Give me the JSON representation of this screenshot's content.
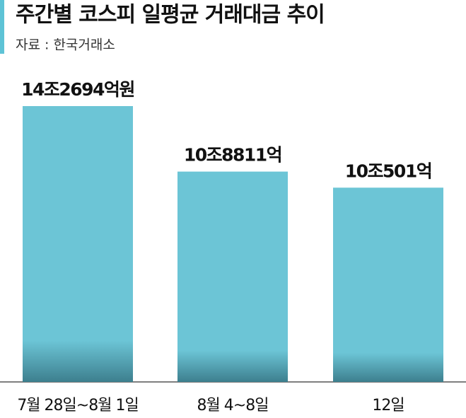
{
  "chart_data": {
    "type": "bar",
    "title": "주간별 코스피 일평균 거래대금 추이",
    "subtitle": "자료 : 한국거래소",
    "categories": [
      "7월 28일~8월 1일",
      "8월 4~8일",
      "12일"
    ],
    "values": [
      142694,
      108811,
      100501
    ],
    "value_labels": [
      "14조2694억원",
      "10조8811억",
      "10조501억"
    ],
    "color": "#6cc5d6"
  }
}
